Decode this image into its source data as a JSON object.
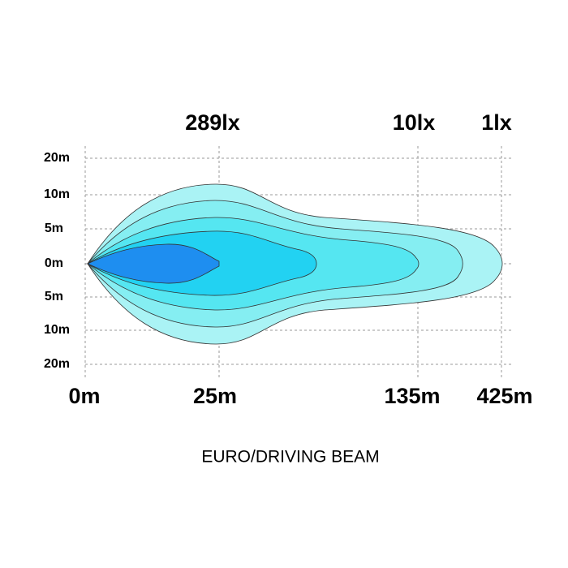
{
  "lux_labels": [
    "289lx",
    "10lx",
    "1lx"
  ],
  "y_labels": [
    "20m",
    "10m",
    "5m",
    "0m",
    "5m",
    "10m",
    "20m"
  ],
  "x_labels": [
    "0m",
    "25m",
    "135m",
    "425m"
  ],
  "caption": "EURO/DRIVING BEAM"
}
